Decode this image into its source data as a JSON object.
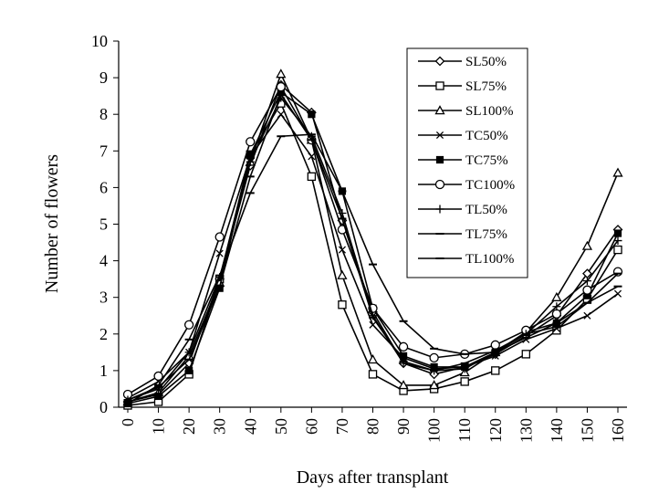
{
  "chart_data": {
    "type": "line",
    "title": "",
    "xlabel": "Days after transplant",
    "ylabel": "Number of flowers",
    "x": [
      0,
      10,
      20,
      30,
      40,
      50,
      60,
      70,
      80,
      90,
      100,
      110,
      120,
      130,
      140,
      150,
      160
    ],
    "xlim": [
      0,
      160
    ],
    "ylim": [
      0,
      10
    ],
    "yticks": [
      0,
      1,
      2,
      3,
      4,
      5,
      6,
      7,
      8,
      9,
      10
    ],
    "grid": false,
    "legend_position": "top-right",
    "series": [
      {
        "name": "SL50%",
        "marker": "diamond",
        "values": [
          0.15,
          0.35,
          1.2,
          3.5,
          6.6,
          8.8,
          8.05,
          5.1,
          2.6,
          1.2,
          0.9,
          1.1,
          1.45,
          1.95,
          2.5,
          3.65,
          4.85
        ]
      },
      {
        "name": "SL75%",
        "marker": "square",
        "values": [
          0.05,
          0.15,
          0.9,
          3.5,
          6.9,
          8.3,
          6.3,
          2.8,
          0.9,
          0.45,
          0.5,
          0.7,
          1.0,
          1.45,
          2.1,
          2.95,
          4.3
        ]
      },
      {
        "name": "SL100%",
        "marker": "triangle",
        "values": [
          0.15,
          0.4,
          1.4,
          3.4,
          6.7,
          9.1,
          7.3,
          3.6,
          1.3,
          0.6,
          0.6,
          0.95,
          1.5,
          2.05,
          3.0,
          4.4,
          6.4
        ]
      },
      {
        "name": "TC50%",
        "marker": "x",
        "values": [
          0.25,
          0.7,
          1.5,
          4.2,
          6.85,
          8.0,
          6.85,
          4.3,
          2.25,
          1.35,
          1.05,
          1.1,
          1.4,
          1.85,
          2.15,
          2.5,
          3.1
        ]
      },
      {
        "name": "TC75%",
        "marker": "filled-square",
        "values": [
          0.1,
          0.3,
          1.0,
          3.25,
          6.9,
          8.6,
          8.0,
          5.9,
          2.7,
          1.4,
          1.1,
          1.1,
          1.5,
          2.05,
          2.3,
          3.05,
          4.75
        ]
      },
      {
        "name": "TC100%",
        "marker": "circle",
        "values": [
          0.35,
          0.85,
          2.25,
          4.65,
          7.25,
          8.75,
          7.3,
          4.85,
          2.7,
          1.65,
          1.35,
          1.45,
          1.7,
          2.1,
          2.55,
          3.2,
          3.7
        ]
      },
      {
        "name": "TL50%",
        "marker": "plus",
        "values": [
          0.2,
          0.5,
          1.5,
          3.55,
          6.7,
          8.45,
          7.4,
          5.3,
          2.5,
          1.2,
          1.0,
          1.05,
          1.5,
          2.0,
          2.75,
          3.45,
          4.55
        ]
      },
      {
        "name": "TL75%",
        "marker": "dash",
        "values": [
          0.2,
          0.55,
          1.3,
          3.3,
          6.3,
          8.55,
          7.3,
          5.15,
          2.45,
          1.25,
          1.0,
          1.2,
          1.55,
          2.0,
          2.2,
          2.85,
          3.3
        ]
      },
      {
        "name": "TL100%",
        "marker": "dash",
        "values": [
          0.1,
          0.6,
          1.85,
          3.6,
          5.85,
          7.4,
          7.45,
          5.9,
          3.9,
          2.35,
          1.6,
          1.45,
          1.5,
          1.9,
          2.3,
          2.85,
          3.65
        ]
      }
    ]
  }
}
